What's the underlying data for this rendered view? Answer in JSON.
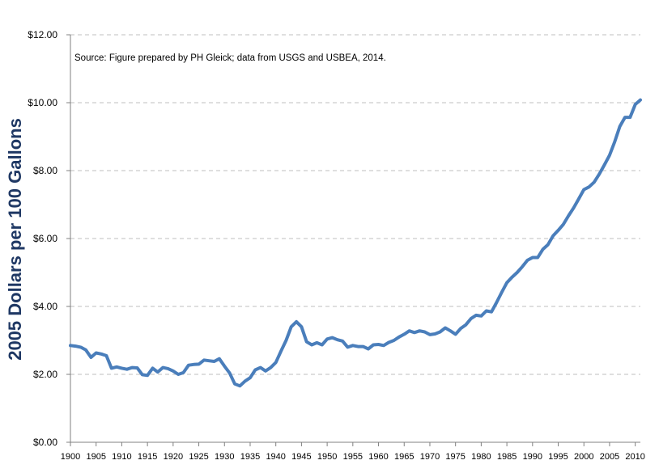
{
  "chart_data": {
    "type": "line",
    "title": "",
    "xlabel": "",
    "ylabel": "2005 Dollars per 100 Gallons",
    "annotation": "Source: Figure prepared by PH Gleick; data from USGS and USBEA,  2014.",
    "ylim": [
      0,
      12
    ],
    "xlim": [
      1900,
      2011
    ],
    "y_ticks": [
      "$0.00",
      "$2.00",
      "$4.00",
      "$6.00",
      "$8.00",
      "$10.00",
      "$12.00"
    ],
    "x_ticks": [
      "1900",
      "1905",
      "1910",
      "1915",
      "1920",
      "1925",
      "1930",
      "1935",
      "1940",
      "1945",
      "1950",
      "1955",
      "1960",
      "1965",
      "1970",
      "1975",
      "1980",
      "1985",
      "1990",
      "1995",
      "2000",
      "2005",
      "2010"
    ],
    "grid": true,
    "legend": "none",
    "series_color": "#4a7ebb",
    "series": [
      {
        "x": [
          1900,
          1901,
          1902,
          1903,
          1904,
          1905,
          1906,
          1907,
          1908,
          1909,
          1910,
          1911,
          1912,
          1913,
          1914,
          1915,
          1916,
          1917,
          1918,
          1919,
          1920,
          1921,
          1922,
          1923,
          1924,
          1925,
          1926,
          1927,
          1928,
          1929,
          1930,
          1931,
          1932,
          1933,
          1934,
          1935,
          1936,
          1937,
          1938,
          1939,
          1940,
          1941,
          1942,
          1943,
          1944,
          1945,
          1946,
          1947,
          1948,
          1949,
          1950,
          1951,
          1952,
          1953,
          1954,
          1955,
          1956,
          1957,
          1958,
          1959,
          1960,
          1961,
          1962,
          1963,
          1964,
          1965,
          1966,
          1967,
          1968,
          1969,
          1970,
          1971,
          1972,
          1973,
          1974,
          1975,
          1976,
          1977,
          1978,
          1979,
          1980,
          1981,
          1982,
          1983,
          1984,
          1985,
          1986,
          1987,
          1988,
          1989,
          1990,
          1991,
          1992,
          1993,
          1994,
          1995,
          1996,
          1997,
          1998,
          1999,
          2000,
          2001,
          2002,
          2003,
          2004,
          2005,
          2006,
          2007,
          2008,
          2009,
          2010,
          2011
        ],
        "values": [
          2.85,
          2.83,
          2.8,
          2.72,
          2.5,
          2.63,
          2.6,
          2.55,
          2.18,
          2.22,
          2.18,
          2.15,
          2.2,
          2.19,
          1.99,
          1.97,
          2.18,
          2.07,
          2.2,
          2.17,
          2.1,
          2.0,
          2.05,
          2.27,
          2.29,
          2.3,
          2.42,
          2.4,
          2.38,
          2.46,
          2.24,
          2.04,
          1.72,
          1.66,
          1.8,
          1.9,
          2.13,
          2.2,
          2.1,
          2.2,
          2.35,
          2.68,
          3.0,
          3.4,
          3.55,
          3.4,
          2.96,
          2.87,
          2.93,
          2.87,
          3.04,
          3.08,
          3.02,
          2.98,
          2.8,
          2.85,
          2.82,
          2.82,
          2.75,
          2.87,
          2.88,
          2.85,
          2.94,
          3.0,
          3.1,
          3.18,
          3.28,
          3.23,
          3.28,
          3.25,
          3.17,
          3.19,
          3.25,
          3.37,
          3.28,
          3.18,
          3.35,
          3.46,
          3.64,
          3.74,
          3.72,
          3.87,
          3.84,
          4.12,
          4.42,
          4.7,
          4.86,
          5.0,
          5.17,
          5.36,
          5.44,
          5.44,
          5.68,
          5.82,
          6.08,
          6.24,
          6.42,
          6.67,
          6.9,
          7.17,
          7.44,
          7.52,
          7.66,
          7.9,
          8.17,
          8.45,
          8.85,
          9.3,
          9.57,
          9.57,
          9.95,
          10.08
        ]
      }
    ]
  }
}
